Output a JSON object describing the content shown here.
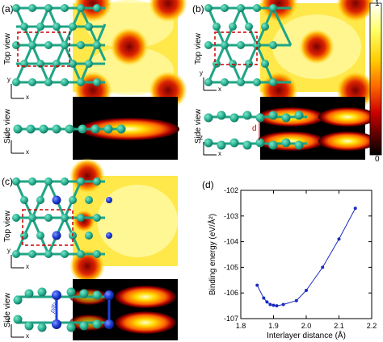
{
  "panels": {
    "a": {
      "label": "(a)",
      "top_view": "Top view",
      "side_view": "Side view"
    },
    "b": {
      "label": "(b)",
      "top_view": "Top view",
      "side_view": "Side view",
      "d_label": "d"
    },
    "c": {
      "label": "(c)",
      "top_view": "Top view",
      "side_view": "Side view",
      "pillar_label": "pillar"
    },
    "d": {
      "label": "(d)"
    }
  },
  "axes_glyphs": {
    "x": "x",
    "y": "y",
    "z": "z"
  },
  "colorbar": {
    "max_label": "1",
    "min_label": "0",
    "stops": [
      "#ffffff",
      "#ffff66",
      "#ffcc00",
      "#ff6600",
      "#cc0000",
      "#660000",
      "#000000"
    ]
  },
  "colors": {
    "atom_green": "#2bb394",
    "atom_dark": "#137a63",
    "bond": "#1fa585",
    "atom_blue": "#1f3fd8",
    "dashed_box": "#cc0000",
    "line_blue": "#1a2bbf"
  },
  "chart_data": {
    "type": "line",
    "xlabel": "Interlayer distance (Å)",
    "ylabel": "Binding energy (eV/Å²)",
    "xlim": [
      1.8,
      2.2
    ],
    "ylim": [
      -107,
      -102
    ],
    "xticks": [
      "1.8",
      "1.9",
      "2.0",
      "2.1",
      "2.2"
    ],
    "yticks": [
      "-107",
      "-106",
      "-105",
      "-104",
      "-103",
      "-102"
    ],
    "x": [
      1.85,
      1.87,
      1.88,
      1.89,
      1.9,
      1.91,
      1.93,
      1.97,
      2.0,
      2.05,
      2.1,
      2.15
    ],
    "y": [
      -105.7,
      -106.2,
      -106.35,
      -106.45,
      -106.48,
      -106.5,
      -106.45,
      -106.3,
      -105.9,
      -105.0,
      -103.9,
      -102.7
    ]
  }
}
